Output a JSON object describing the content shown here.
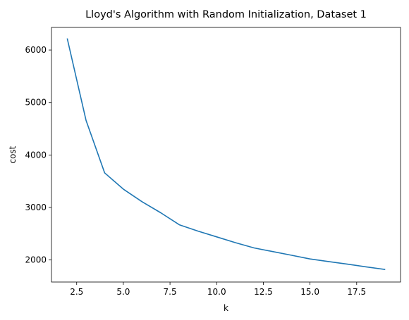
{
  "chart_data": {
    "type": "line",
    "title": "Lloyd's Algorithm with Random Initialization, Dataset 1",
    "xlabel": "k",
    "ylabel": "cost",
    "xlim": [
      1.15,
      19.85
    ],
    "ylim": [
      1580,
      6430
    ],
    "xticks": [
      2.5,
      5.0,
      7.5,
      10.0,
      12.5,
      15.0,
      17.5
    ],
    "xtick_labels": [
      "2.5",
      "5.0",
      "7.5",
      "10.0",
      "12.5",
      "15.0",
      "17.5"
    ],
    "yticks": [
      2000,
      3000,
      4000,
      5000,
      6000
    ],
    "ytick_labels": [
      "2000",
      "3000",
      "4000",
      "5000",
      "6000"
    ],
    "grid": false,
    "series": [
      {
        "color": "#1f77b4",
        "x": [
          2,
          3,
          4,
          5,
          6,
          7,
          8,
          9,
          10,
          11,
          12,
          13,
          14,
          15,
          16,
          17,
          18,
          19
        ],
        "y": [
          6210,
          4660,
          3660,
          3350,
          3110,
          2900,
          2670,
          2550,
          2440,
          2330,
          2230,
          2160,
          2090,
          2020,
          1970,
          1920,
          1870,
          1820
        ]
      }
    ]
  }
}
